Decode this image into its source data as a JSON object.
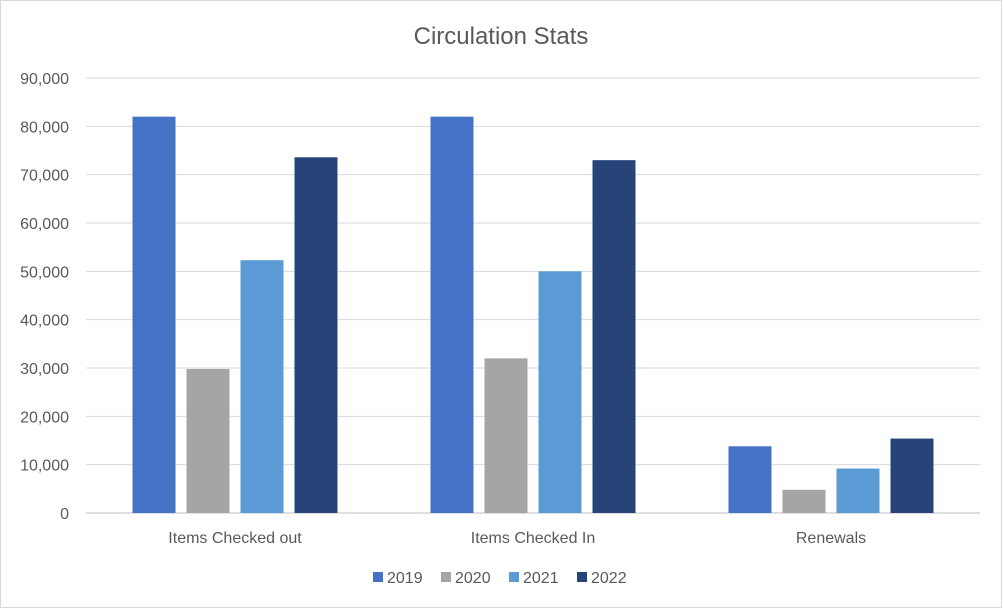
{
  "chart_data": {
    "type": "bar",
    "title": "Circulation Stats",
    "categories": [
      "Items Checked out",
      "Items Checked In",
      "Renewals"
    ],
    "series": [
      {
        "name": "2019",
        "color": "#4472C4",
        "values": [
          82000,
          82000,
          13800
        ]
      },
      {
        "name": "2020",
        "color": "#A5A5A5",
        "values": [
          29800,
          32000,
          4800
        ]
      },
      {
        "name": "2021",
        "color": "#5B9BD5",
        "values": [
          52300,
          50000,
          9200
        ]
      },
      {
        "name": "2022",
        "color": "#264478",
        "values": [
          73600,
          73000,
          15400
        ]
      }
    ],
    "ylim": [
      0,
      90000
    ],
    "yticks": [
      "0",
      "10,000",
      "20,000",
      "30,000",
      "40,000",
      "50,000",
      "60,000",
      "70,000",
      "80,000",
      "90,000"
    ],
    "grid": true,
    "legend": "bottom"
  }
}
